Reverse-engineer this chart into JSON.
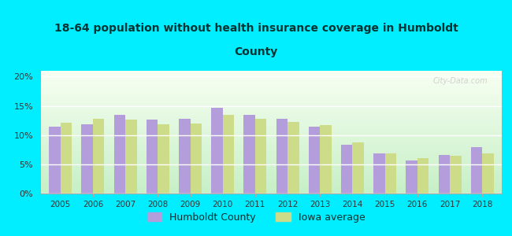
{
  "title_line1": "18-64 population without health insurance coverage in Humboldt",
  "title_line2": "County",
  "years": [
    2005,
    2006,
    2007,
    2008,
    2009,
    2010,
    2011,
    2012,
    2013,
    2014,
    2015,
    2016,
    2017,
    2018
  ],
  "humboldt": [
    11.5,
    11.8,
    13.4,
    12.7,
    12.8,
    14.7,
    13.4,
    12.8,
    11.4,
    8.4,
    6.8,
    5.6,
    6.6,
    8.0
  ],
  "iowa": [
    12.1,
    12.8,
    12.7,
    11.9,
    12.0,
    13.4,
    12.8,
    12.2,
    11.7,
    8.8,
    6.9,
    6.1,
    6.5,
    6.8
  ],
  "humboldt_color": "#b39ddb",
  "iowa_color": "#cddc89",
  "background_outer": "#00eeff",
  "ylim": [
    0,
    21
  ],
  "yticks": [
    0,
    5,
    10,
    15,
    20
  ],
  "ytick_labels": [
    "0%",
    "5%",
    "10%",
    "15%",
    "20%"
  ],
  "legend_humboldt": "Humboldt County",
  "legend_iowa": "Iowa average",
  "bar_width": 0.35
}
